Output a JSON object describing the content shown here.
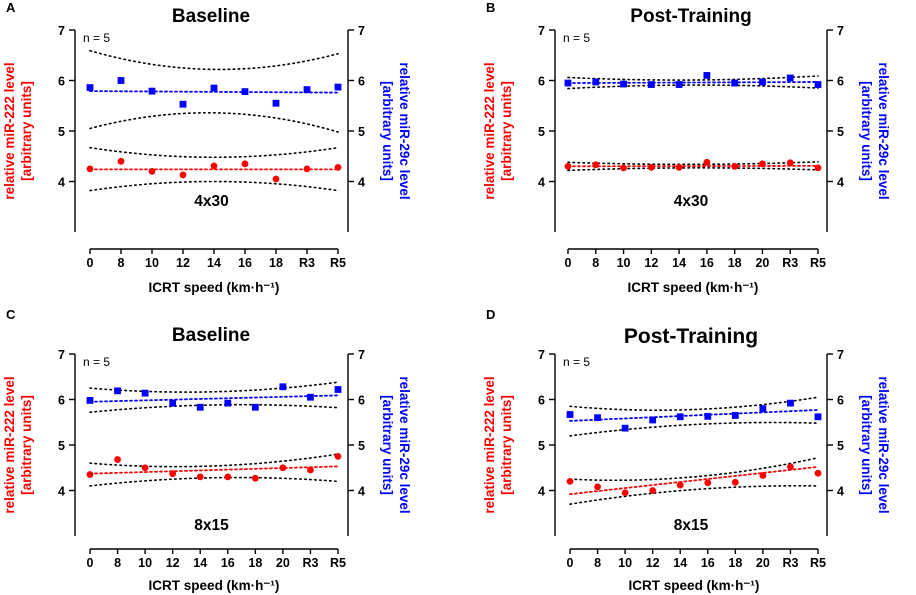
{
  "figure": {
    "x_axis_label": "ICRT speed (km·h⁻¹)",
    "y_left_label_line1": "relative miR-222 level",
    "y_left_label_line2": "[arbitrary units]",
    "y_right_label_line1": "relative miR-29c level",
    "y_right_label_line2": "[arbitrary units]",
    "colors": {
      "mir222": "#ff0000",
      "mir29c": "#0000ff",
      "ci_band": "#000000",
      "axis": "#000000"
    }
  },
  "chart_data": [
    {
      "panel": "A",
      "type": "scatter",
      "title": "Baseline",
      "protocol_label": "4x30",
      "n_label": "n = 5",
      "xlabel": "ICRT speed (km·h⁻¹)",
      "ylabel_left": "relative miR-222 level [arbitrary units]",
      "ylabel_right": "relative miR-29c level [arbitrary units]",
      "ylim": [
        3,
        7
      ],
      "yticks": [
        4,
        5,
        6,
        7
      ],
      "x_ticks": [
        "0",
        "8",
        "10",
        "12",
        "14",
        "16",
        "18",
        "R3",
        "R5"
      ],
      "series": [
        {
          "name": "miR-222",
          "marker": "circle",
          "color": "#ff0000",
          "x": [
            0,
            1,
            2,
            3,
            4,
            5,
            6,
            7,
            8
          ],
          "y": [
            4.25,
            4.4,
            4.2,
            4.13,
            4.31,
            4.35,
            4.05,
            4.25,
            4.28
          ],
          "fit": [
            4.24,
            4.24
          ],
          "ci_upper": [
            4.67,
            4.48,
            4.67
          ],
          "ci_lower": [
            3.82,
            4.0,
            3.82
          ]
        },
        {
          "name": "miR-29c",
          "marker": "square",
          "color": "#0000ff",
          "x": [
            0,
            1,
            2,
            3,
            4,
            5,
            6,
            7,
            8
          ],
          "y": [
            5.86,
            6.0,
            5.79,
            5.53,
            5.85,
            5.78,
            5.55,
            5.82,
            5.87
          ],
          "fit": [
            5.79,
            5.76
          ],
          "ci_upper": [
            6.59,
            6.22,
            6.53
          ],
          "ci_lower": [
            5.05,
            5.36,
            4.98
          ]
        }
      ]
    },
    {
      "panel": "B",
      "type": "scatter",
      "title": "Post-Training",
      "protocol_label": "4x30",
      "n_label": "n = 5",
      "xlabel": "ICRT speed (km·h⁻¹)",
      "ylabel_left": "relative miR-222 level [arbitrary units]",
      "ylabel_right": "relative miR-29c level [arbitrary units]",
      "ylim": [
        3,
        7
      ],
      "yticks": [
        4,
        5,
        6,
        7
      ],
      "x_ticks": [
        "0",
        "8",
        "10",
        "12",
        "14",
        "16",
        "18",
        "20",
        "R3",
        "R5"
      ],
      "series": [
        {
          "name": "miR-222",
          "marker": "circle",
          "color": "#ff0000",
          "x": [
            0,
            1,
            2,
            3,
            4,
            5,
            6,
            7,
            8,
            9
          ],
          "y": [
            4.3,
            4.33,
            4.27,
            4.28,
            4.28,
            4.38,
            4.3,
            4.35,
            4.37,
            4.27
          ],
          "fit": [
            4.3,
            4.31
          ],
          "ci_upper": [
            4.38,
            4.34,
            4.39
          ],
          "ci_lower": [
            4.22,
            4.27,
            4.23
          ]
        },
        {
          "name": "miR-29c",
          "marker": "square",
          "color": "#0000ff",
          "x": [
            0,
            1,
            2,
            3,
            4,
            5,
            6,
            7,
            8,
            9
          ],
          "y": [
            5.95,
            5.97,
            5.93,
            5.92,
            5.92,
            6.1,
            5.95,
            5.97,
            6.05,
            5.92
          ],
          "fit": [
            5.95,
            5.97
          ],
          "ci_upper": [
            6.06,
            6.01,
            6.09
          ],
          "ci_lower": [
            5.84,
            5.91,
            5.85
          ]
        }
      ]
    },
    {
      "panel": "C",
      "type": "scatter",
      "title": "Baseline",
      "protocol_label": "8x15",
      "n_label": "n = 5",
      "xlabel": "ICRT speed (km·h⁻¹)",
      "ylabel_left": "relative miR-222 level [arbitrary units]",
      "ylabel_right": "relative miR-29c level [arbitrary units]",
      "ylim": [
        3,
        7
      ],
      "yticks": [
        4,
        5,
        6,
        7
      ],
      "x_ticks": [
        "0",
        "8",
        "10",
        "12",
        "14",
        "16",
        "18",
        "20",
        "R3",
        "R5"
      ],
      "series": [
        {
          "name": "miR-222",
          "marker": "circle",
          "color": "#ff0000",
          "x": [
            0,
            1,
            2,
            3,
            4,
            5,
            6,
            7,
            8,
            9
          ],
          "y": [
            4.35,
            4.68,
            4.5,
            4.37,
            4.3,
            4.3,
            4.27,
            4.5,
            4.45,
            4.75
          ],
          "fit": [
            4.37,
            4.53
          ],
          "ci_upper": [
            4.6,
            4.54,
            4.8
          ],
          "ci_lower": [
            4.1,
            4.28,
            4.2
          ]
        },
        {
          "name": "miR-29c",
          "marker": "square",
          "color": "#0000ff",
          "x": [
            0,
            1,
            2,
            3,
            4,
            5,
            6,
            7,
            8,
            9
          ],
          "y": [
            5.98,
            6.19,
            6.14,
            5.92,
            5.83,
            5.92,
            5.83,
            6.28,
            6.05,
            6.22
          ],
          "fit": [
            5.95,
            6.09
          ],
          "ci_upper": [
            6.25,
            6.17,
            6.38
          ],
          "ci_lower": [
            5.72,
            5.88,
            5.82
          ]
        }
      ]
    },
    {
      "panel": "D",
      "type": "scatter",
      "title": "Post-Training",
      "protocol_label": "8x15",
      "n_label": "n = 5",
      "xlabel": "ICRT speed (km·h⁻¹)",
      "ylabel_left": "relative miR-222 level [arbitrary units]",
      "ylabel_right": "relative miR-29c level [arbitrary units]",
      "ylim": [
        3,
        7
      ],
      "yticks": [
        4,
        5,
        6,
        7
      ],
      "x_ticks": [
        "0",
        "8",
        "10",
        "12",
        "14",
        "16",
        "18",
        "20",
        "R3",
        "R5"
      ],
      "series": [
        {
          "name": "miR-222",
          "marker": "circle",
          "color": "#ff0000",
          "x": [
            0,
            1,
            2,
            3,
            4,
            5,
            6,
            7,
            8,
            9
          ],
          "y": [
            4.2,
            4.08,
            3.95,
            4.0,
            4.12,
            4.17,
            4.18,
            4.33,
            4.52,
            4.38
          ],
          "fit": [
            3.92,
            4.52
          ],
          "ci_upper": [
            4.25,
            4.3,
            4.72
          ],
          "ci_lower": [
            3.7,
            4.02,
            4.1
          ]
        },
        {
          "name": "miR-29c",
          "marker": "square",
          "color": "#0000ff",
          "x": [
            0,
            1,
            2,
            3,
            4,
            5,
            6,
            7,
            8,
            9
          ],
          "y": [
            5.67,
            5.6,
            5.37,
            5.55,
            5.62,
            5.63,
            5.65,
            5.8,
            5.92,
            5.62
          ],
          "fit": [
            5.53,
            5.77
          ],
          "ci_upper": [
            5.85,
            5.78,
            6.05
          ],
          "ci_lower": [
            5.2,
            5.45,
            5.48
          ]
        }
      ]
    }
  ]
}
